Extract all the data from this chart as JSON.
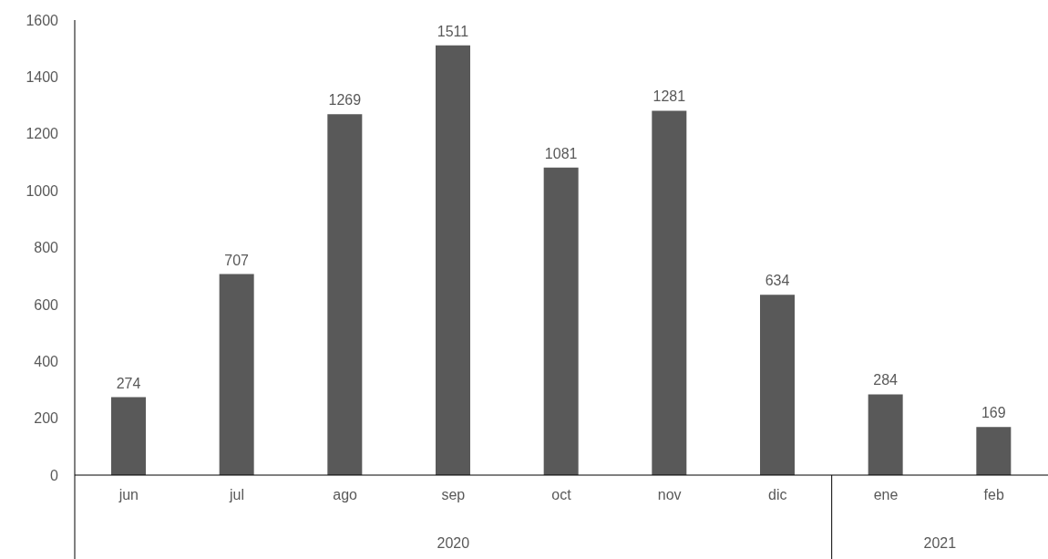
{
  "chart_data": {
    "type": "bar",
    "categories": [
      "jun",
      "jul",
      "ago",
      "sep",
      "oct",
      "nov",
      "dic",
      "ene",
      "feb"
    ],
    "values": [
      274,
      707,
      1269,
      1511,
      1081,
      1281,
      634,
      284,
      169
    ],
    "color": "#595959",
    "ylim": [
      0,
      1600
    ],
    "yticks": [
      0,
      200,
      400,
      600,
      800,
      1000,
      1200,
      1400,
      1600
    ],
    "grid": false,
    "data_labels": true,
    "annotations": [
      "2020",
      "2021"
    ]
  }
}
